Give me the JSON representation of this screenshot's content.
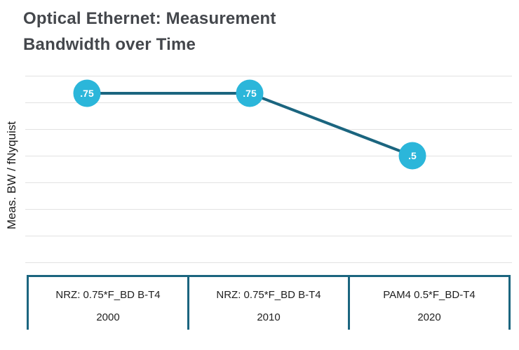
{
  "title": {
    "line1": "Optical Ethernet: Measurement",
    "line2": "Bandwidth over Time"
  },
  "chart_data": {
    "type": "line",
    "title": "Optical Ethernet: Measurement Bandwidth over Time",
    "ylabel": "Meas. BW / fNyquist",
    "xlabel": "",
    "x": [
      "2000",
      "2010",
      "2020"
    ],
    "categories": [
      {
        "label": "NRZ: 0.75*F_BD B-T4",
        "year": "2000"
      },
      {
        "label": "NRZ: 0.75*F_BD B-T4",
        "year": "2010"
      },
      {
        "label": "PAM4 0.5*F_BD-T4",
        "year": "2020"
      }
    ],
    "series": [
      {
        "name": "Meas. BW / fNyquist",
        "values": [
          0.75,
          0.75,
          0.5
        ]
      }
    ],
    "point_labels": [
      ".75",
      ".75",
      ".5"
    ],
    "ylim": [
      0.07,
      0.82
    ],
    "gridlines": 8,
    "legend": "none",
    "colors": {
      "point_fill": "#2bb6da",
      "line": "#1b657f",
      "grid": "#e2e2e2",
      "table_border": "#1b657f",
      "title_text": "#44474c",
      "body_text": "#1f1f1f",
      "point_label_text": "#ffffff"
    }
  }
}
